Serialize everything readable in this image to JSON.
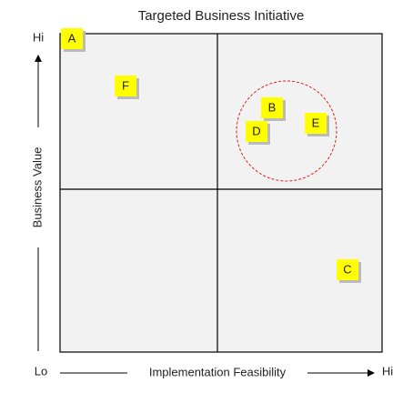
{
  "title": "Targeted Business Initiative",
  "y_axis": {
    "label": "Business Value",
    "high": "Hi"
  },
  "x_axis": {
    "label": "Implementation Feasibility",
    "low": "Lo",
    "high": "Hi"
  },
  "notes": [
    {
      "label": "A"
    },
    {
      "label": "F"
    },
    {
      "label": "B"
    },
    {
      "label": "D"
    },
    {
      "label": "E"
    },
    {
      "label": "C"
    }
  ]
}
